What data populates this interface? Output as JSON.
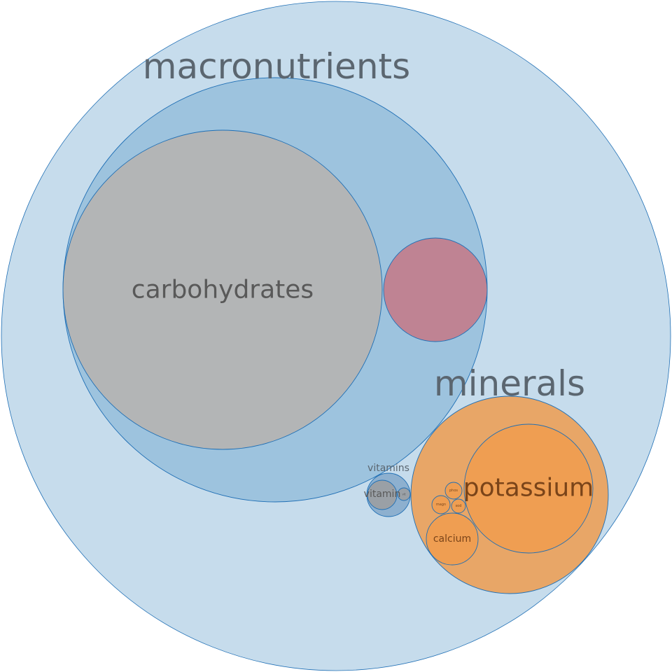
{
  "chart_data": {
    "type": "circle-packing",
    "colors": {
      "root_fill": "#c6dcec",
      "macro_fill": "#9dc3de",
      "carb_fill": "#b3b5b6",
      "protein_fill": "#bf8393",
      "minerals_fill": "#e8a667",
      "mineral_leaf_fill": "#ef9e52",
      "vitamins_fill": "#8db0cf",
      "vitamin_leaf_fill": "#9aa0a6",
      "stroke": "#1f6fb5",
      "group_text": "#5b6670",
      "leaf_text": "#595959",
      "mineral_text": "#7a4419"
    },
    "nodes": [
      {
        "id": "root",
        "label": "",
        "value": 100.0,
        "level": 0,
        "role": "root"
      },
      {
        "id": "macronutrients",
        "label": "macronutrients",
        "value": 40.2,
        "level": 1,
        "role": "group"
      },
      {
        "id": "carbohydrates",
        "label": "carbohydrates",
        "value": 22.8,
        "level": 2,
        "role": "leaf"
      },
      {
        "id": "protein",
        "label": "",
        "value": 2.4,
        "level": 2,
        "role": "leaf-pink"
      },
      {
        "id": "minerals",
        "label": "minerals",
        "value": 8.7,
        "level": 1,
        "role": "group-orange"
      },
      {
        "id": "potassium",
        "label": "potassium",
        "value": 3.7,
        "level": 2,
        "role": "mineral"
      },
      {
        "id": "calcium",
        "label": "calcium",
        "value": 0.62,
        "level": 2,
        "role": "mineral"
      },
      {
        "id": "phosphorus",
        "label": "phos",
        "value": 0.075,
        "level": 2,
        "role": "mineral"
      },
      {
        "id": "magnesium",
        "label": "magn",
        "value": 0.08,
        "level": 2,
        "role": "mineral"
      },
      {
        "id": "sodium",
        "label": "sod",
        "value": 0.044,
        "level": 2,
        "role": "mineral"
      },
      {
        "id": "vitamins",
        "label": "vitamins",
        "value": 0.42,
        "level": 1,
        "role": "group-vit"
      },
      {
        "id": "vitamin",
        "label": "vitamin",
        "value": 0.19,
        "level": 2,
        "role": "vit-leaf"
      },
      {
        "id": "vitamin-small",
        "label": "vit",
        "value": 0.04,
        "level": 2,
        "role": "vit-leaf"
      }
    ]
  }
}
